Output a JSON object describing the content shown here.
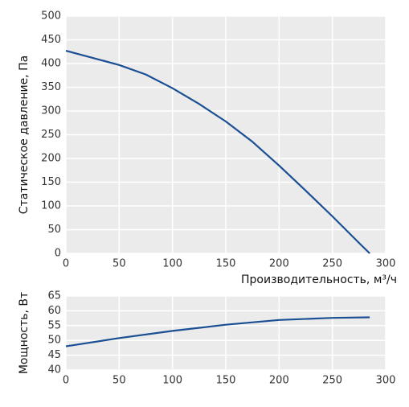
{
  "chart_data": [
    {
      "type": "line",
      "ylabel": "Статическое давление, Па",
      "xlabel": "Производительность, м³/ч",
      "x": [
        0,
        25,
        50,
        75,
        100,
        125,
        150,
        175,
        200,
        225,
        250,
        275,
        285
      ],
      "series": [
        {
          "color": "#1b4f93",
          "values": [
            427,
            412,
            397,
            377,
            348,
            315,
            278,
            235,
            185,
            132,
            78,
            22,
            0
          ]
        }
      ],
      "xlim": [
        0,
        300
      ],
      "xticks": [
        0,
        50,
        100,
        150,
        200,
        250,
        300
      ],
      "ylim": [
        0,
        500
      ],
      "yticks": [
        0,
        50,
        100,
        150,
        200,
        250,
        300,
        350,
        400,
        450,
        500
      ],
      "grid": true
    },
    {
      "type": "line",
      "ylabel": "Мощность, Вт",
      "x": [
        0,
        50,
        100,
        150,
        200,
        250,
        285
      ],
      "series": [
        {
          "color": "#1b4f93",
          "values": [
            48,
            50.8,
            53.2,
            55.3,
            56.9,
            57.6,
            57.8
          ]
        }
      ],
      "xlim": [
        0,
        300
      ],
      "xticks": [
        0,
        50,
        100,
        150,
        200,
        250,
        300
      ],
      "ylim": [
        40,
        65
      ],
      "yticks": [
        40,
        45,
        50,
        55,
        60,
        65
      ],
      "grid": true
    }
  ]
}
